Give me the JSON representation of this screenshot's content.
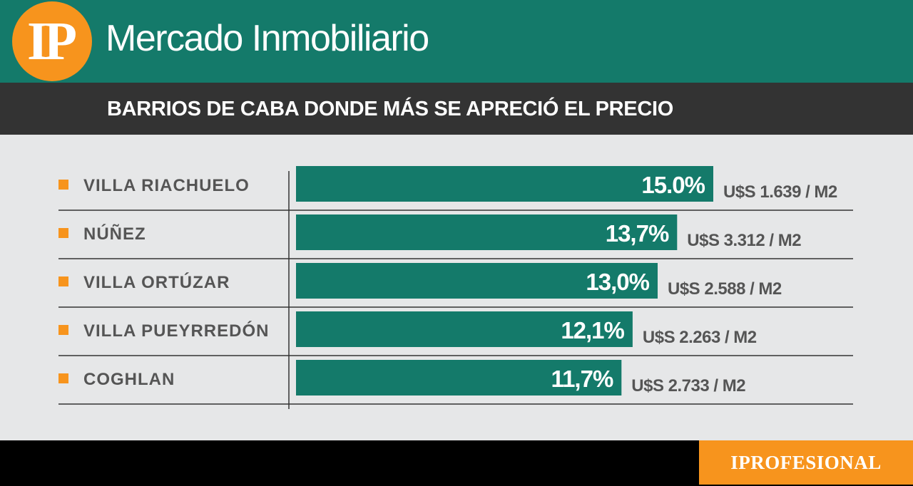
{
  "header": {
    "logo_text": "IP",
    "title": "Mercado Inmobiliario",
    "subtitle": "BARRIOS DE CABA DONDE MÁS SE APRECIÓ EL PRECIO"
  },
  "footer": {
    "brand": "IPROFESIONAL"
  },
  "colors": {
    "bar": "#147a6a",
    "header_bg": "#147a6a",
    "subbar_bg": "#333333",
    "accent": "#f7941d",
    "label_text": "#555555",
    "background": "#e6e7e8"
  },
  "chart_data": {
    "type": "bar",
    "orientation": "horizontal",
    "title": "BARRIOS DE CABA DONDE MÁS SE APRECIÓ EL PRECIO",
    "categories": [
      "VILLA RIACHUELO",
      "NÚÑEZ",
      "VILLA ORTÚZAR",
      "VILLA PUEYRREDÓN",
      "COGHLAN"
    ],
    "values": [
      15.0,
      13.7,
      13.0,
      12.1,
      11.7
    ],
    "value_labels": [
      "15.0%",
      "13,7%",
      "13,0%",
      "12,1%",
      "11,7%"
    ],
    "price_labels": [
      "U$S 1.639 / M2",
      "U$S 3.312 / M2",
      "U$S 2.588 / M2",
      "U$S 2.263 / M2",
      "U$S 2.733 / M2"
    ],
    "xlim": [
      0,
      15.0
    ],
    "grid": false,
    "legend": "none"
  }
}
